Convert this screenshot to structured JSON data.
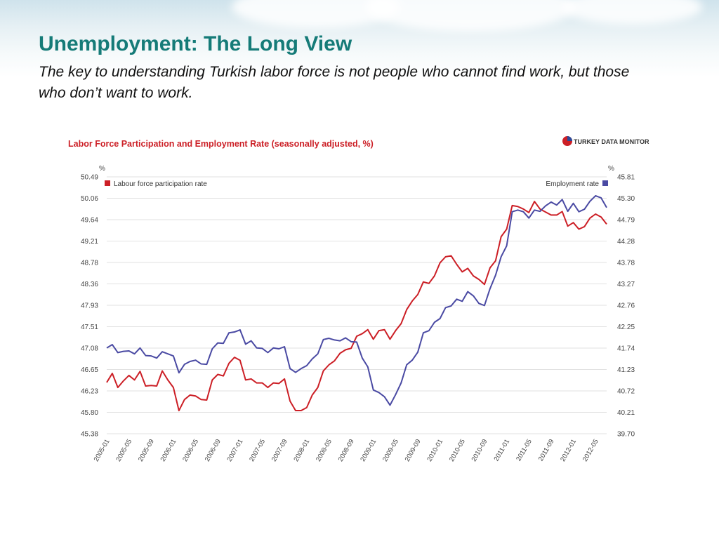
{
  "slide": {
    "title": "Unemployment: The Long View",
    "subtitle": "The key to understanding Turkish labor force is not people who cannot find work, but those who don’t want to work."
  },
  "chart_data": {
    "type": "line",
    "title": "Labor Force Participation and Employment Rate (seasonally adjusted, %)",
    "brand": {
      "prefix": "TURKEY DATA ",
      "suffix": "MONITOR"
    },
    "left_axis": {
      "unit": "%",
      "ticks": [
        "50.49",
        "50.06",
        "49.64",
        "49.21",
        "48.78",
        "48.36",
        "47.93",
        "47.51",
        "47.08",
        "46.65",
        "46.23",
        "45.80",
        "45.38"
      ],
      "ylim": [
        45.38,
        50.49
      ]
    },
    "right_axis": {
      "unit": "%",
      "ticks": [
        "45.81",
        "45.30",
        "44.79",
        "44.28",
        "43.78",
        "43.27",
        "42.76",
        "42.25",
        "41.74",
        "41.23",
        "40.72",
        "40.21",
        "39.70"
      ],
      "ylim": [
        39.7,
        45.81
      ]
    },
    "x_ticks": [
      "2005-01",
      "2005-05",
      "2005-09",
      "2006-01",
      "2006-05",
      "2006-09",
      "2007-01",
      "2007-05",
      "2007-09",
      "2008-01",
      "2008-05",
      "2008-09",
      "2009-01",
      "2009-05",
      "2009-09",
      "2010-01",
      "2010-05",
      "2010-09",
      "2011-01",
      "2011-05",
      "2011-09",
      "2012-01",
      "2012-05"
    ],
    "x_start": "2005-01",
    "x_end": "2012-07",
    "grid": true,
    "legend": {
      "left": "Labour force participation rate",
      "right": "Employment rate"
    },
    "colors": {
      "participation": "#cc1f26",
      "employment": "#4a4aa3",
      "title": "#cc1f26",
      "grid": "#e2e2e2"
    },
    "series": [
      {
        "name": "Labour force participation rate",
        "axis": "left",
        "values": [
          46.4,
          46.58,
          46.3,
          46.43,
          46.54,
          46.45,
          46.62,
          46.33,
          46.34,
          46.33,
          46.63,
          46.45,
          46.3,
          45.84,
          46.06,
          46.15,
          46.13,
          46.06,
          46.05,
          46.45,
          46.56,
          46.53,
          46.78,
          46.9,
          46.84,
          46.45,
          46.47,
          46.39,
          46.39,
          46.3,
          46.39,
          46.38,
          46.47,
          46.03,
          45.84,
          45.84,
          45.9,
          46.15,
          46.3,
          46.63,
          46.75,
          46.83,
          46.98,
          47.05,
          47.08,
          47.32,
          47.37,
          47.45,
          47.26,
          47.43,
          47.45,
          47.26,
          47.43,
          47.57,
          47.85,
          48.02,
          48.15,
          48.4,
          48.37,
          48.52,
          48.78,
          48.9,
          48.92,
          48.75,
          48.6,
          48.67,
          48.52,
          48.45,
          48.35,
          48.68,
          48.82,
          49.3,
          49.45,
          49.92,
          49.9,
          49.85,
          49.78,
          50.0,
          49.85,
          49.79,
          49.73,
          49.73,
          49.8,
          49.51,
          49.58,
          49.45,
          49.5,
          49.67,
          49.75,
          49.69,
          49.55
        ]
      },
      {
        "name": "Employment rate",
        "axis": "right",
        "values": [
          41.74,
          41.82,
          41.63,
          41.66,
          41.67,
          41.6,
          41.74,
          41.56,
          41.55,
          41.5,
          41.65,
          41.6,
          41.55,
          41.15,
          41.35,
          41.42,
          41.45,
          41.36,
          41.35,
          41.72,
          41.86,
          41.85,
          42.1,
          42.12,
          42.17,
          41.83,
          41.91,
          41.74,
          41.73,
          41.63,
          41.74,
          41.72,
          41.77,
          41.25,
          41.16,
          41.25,
          41.32,
          41.48,
          41.6,
          41.94,
          41.97,
          41.93,
          41.91,
          41.98,
          41.89,
          41.88,
          41.5,
          41.29,
          40.74,
          40.68,
          40.58,
          40.38,
          40.63,
          40.91,
          41.34,
          41.45,
          41.64,
          42.1,
          42.15,
          42.35,
          42.44,
          42.7,
          42.74,
          42.9,
          42.85,
          43.08,
          42.98,
          42.8,
          42.75,
          43.15,
          43.47,
          43.91,
          44.17,
          44.98,
          45.02,
          44.98,
          44.83,
          45.02,
          44.99,
          45.12,
          45.21,
          45.14,
          45.27,
          44.99,
          45.18,
          44.98,
          45.04,
          45.23,
          45.36,
          45.31,
          45.08
        ]
      }
    ]
  }
}
